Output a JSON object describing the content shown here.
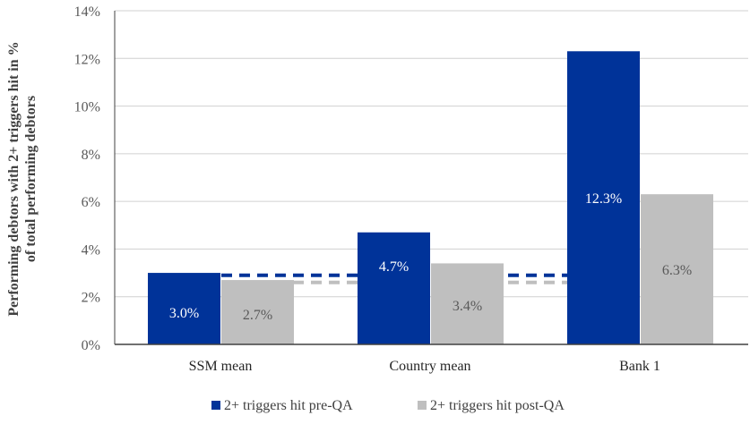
{
  "chart_data": {
    "type": "bar",
    "categories": [
      "SSM mean",
      "Country  mean",
      "Bank 1"
    ],
    "series": [
      {
        "name": "2+ triggers hit pre-QA",
        "color": "#003399",
        "values": [
          3.0,
          4.7,
          12.3
        ],
        "labels": [
          "3.0%",
          "4.7%",
          "12.3%"
        ]
      },
      {
        "name": "2+ triggers hit post-QA",
        "color": "#BFBFBF",
        "values": [
          2.7,
          3.4,
          6.3
        ],
        "labels": [
          "2.7%",
          "3.4%",
          "6.3%"
        ]
      }
    ],
    "reference_lines": [
      {
        "style": "dashed",
        "color": "#003399",
        "value": 2.9
      },
      {
        "style": "dashed",
        "color": "#BFBFBF",
        "value": 2.6
      }
    ],
    "ylabel": "Performing debtors with 2+ triggers hit in % of total performing debtors",
    "ylabel_lines": [
      "Performing debtors with 2+ triggers hit in %",
      "of total performing debtors"
    ],
    "ylim": [
      0,
      14
    ],
    "yticks": [
      "0%",
      "2%",
      "4%",
      "6%",
      "8%",
      "10%",
      "12%",
      "14%"
    ],
    "grid": true,
    "legend": "bottom"
  }
}
